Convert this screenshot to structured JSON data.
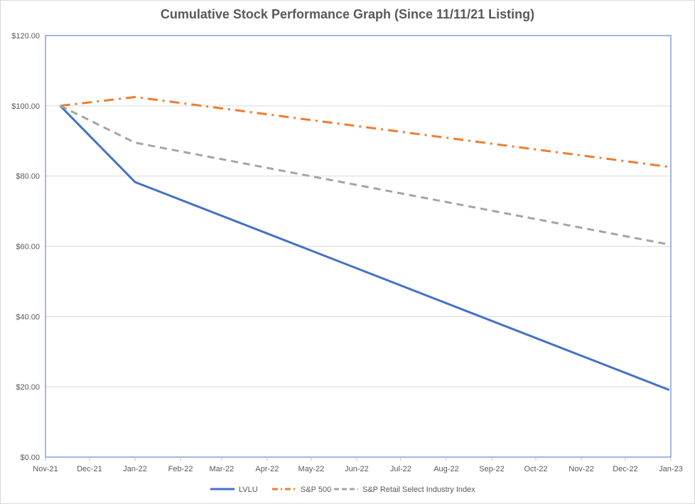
{
  "chart_data": {
    "type": "line",
    "title": "Cumulative Stock Performance Graph (Since 11/11/21 Listing)",
    "x_dates": [
      "2021-11-11",
      "2022-01-01",
      "2022-12-31"
    ],
    "x_ticks": [
      "Nov-21",
      "Dec-21",
      "Jan-22",
      "Feb-22",
      "Mar-22",
      "Apr-22",
      "May-22",
      "Jun-22",
      "Jul-22",
      "Aug-22",
      "Sep-22",
      "Oct-22",
      "Nov-22",
      "Dec-22",
      "Jan-23"
    ],
    "y_ticks": [
      "$0.00",
      "$20.00",
      "$40.00",
      "$60.00",
      "$80.00",
      "$100.00",
      "$120.00"
    ],
    "ylim": [
      0,
      120
    ],
    "xlim": [
      "2021-11-01",
      "2023-01-01"
    ],
    "grid": "horizontal",
    "legend_position": "bottom",
    "series": [
      {
        "name": "LVLU",
        "values": [
          100,
          78.3,
          19.1
        ],
        "color": "#4472c4",
        "style": "solid"
      },
      {
        "name": "S&P 500",
        "values": [
          100,
          102.5,
          82.6
        ],
        "color": "#ed7d31",
        "style": "dash-dot"
      },
      {
        "name": "S&P Retail Select Industry Index",
        "values": [
          100,
          89.5,
          60.5
        ],
        "color": "#a5a5a5",
        "style": "dashed"
      }
    ]
  }
}
